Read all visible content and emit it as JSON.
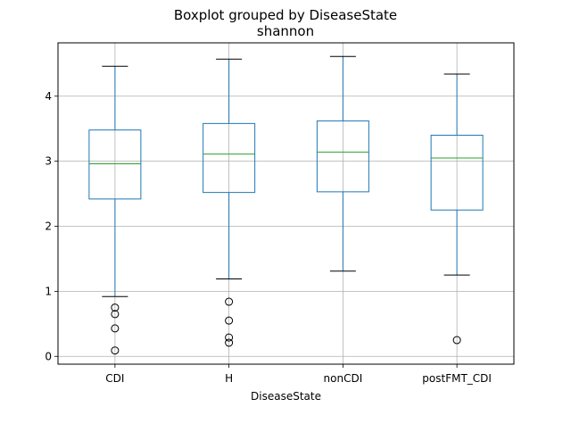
{
  "chart_data": {
    "type": "boxplot",
    "title": "Boxplot grouped by DiseaseState",
    "subtitle": "shannon",
    "xlabel": "DiseaseState",
    "ylabel": "",
    "ylim": [
      -0.12,
      4.82
    ],
    "yticks": [
      "0",
      "1",
      "2",
      "3",
      "4"
    ],
    "grid": true,
    "categories": [
      "CDI",
      "H",
      "nonCDI",
      "postFMT_CDI"
    ],
    "boxes": [
      {
        "category": "CDI",
        "whisker_low": 0.92,
        "q1": 2.42,
        "median": 2.96,
        "q3": 3.48,
        "whisker_high": 4.46,
        "outliers": [
          0.75,
          0.65,
          0.43,
          0.09
        ]
      },
      {
        "category": "H",
        "whisker_low": 1.19,
        "q1": 2.52,
        "median": 3.11,
        "q3": 3.58,
        "whisker_high": 4.57,
        "outliers": [
          0.84,
          0.55,
          0.29,
          0.21
        ]
      },
      {
        "category": "nonCDI",
        "whisker_low": 1.31,
        "q1": 2.53,
        "median": 3.14,
        "q3": 3.62,
        "whisker_high": 4.61,
        "outliers": []
      },
      {
        "category": "postFMT_CDI",
        "whisker_low": 1.25,
        "q1": 2.25,
        "median": 3.05,
        "q3": 3.4,
        "whisker_high": 4.34,
        "outliers": [
          0.25
        ]
      }
    ],
    "colors": {
      "box": "#1f77b4",
      "median": "#2ca02c",
      "whisker_cap": "#000000",
      "outlier": "#000000",
      "grid": "#b0b0b0"
    }
  }
}
